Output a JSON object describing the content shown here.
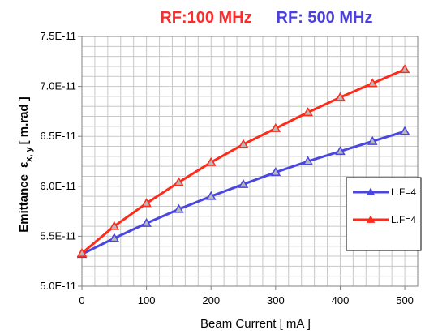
{
  "chart_data": {
    "type": "line",
    "title_left": "RF:100 MHz",
    "title_right": "RF: 500 MHz",
    "title_left_color": "#ff2a2a",
    "title_right_color": "#4a3fe0",
    "xlabel": "Beam Current [ mA ]",
    "ylabel_main": "Emittance",
    "ylabel_symbol": "ε",
    "ylabel_subscript": "x, y",
    "ylabel_unit": "[ m.rad ]",
    "xlim": [
      0,
      520
    ],
    "ylim": [
      5e-11,
      7.5e-11
    ],
    "xticks": [
      0,
      100,
      200,
      300,
      400,
      500
    ],
    "xtick_labels": [
      "0",
      "100",
      "200",
      "300",
      "400",
      "500"
    ],
    "yticks": [
      5e-11,
      5.5e-11,
      6e-11,
      6.5e-11,
      7e-11,
      7.5e-11
    ],
    "ytick_labels": [
      "5.0E-11",
      "5.5E-11",
      "6.0E-11",
      "6.5E-11",
      "7.0E-11",
      "7.5E-11"
    ],
    "grid": true,
    "legend_position": "right",
    "x": [
      0,
      50,
      100,
      150,
      200,
      250,
      300,
      350,
      400,
      450,
      500
    ],
    "series": [
      {
        "name": "L.F=4",
        "color": "#4a46e0",
        "values": [
          5.32e-11,
          5.48e-11,
          5.63e-11,
          5.77e-11,
          5.9e-11,
          6.02e-11,
          6.14e-11,
          6.25e-11,
          6.35e-11,
          6.45e-11,
          6.55e-11
        ]
      },
      {
        "name": "L.F=4",
        "color": "#ff2a1a",
        "values": [
          5.33e-11,
          5.6e-11,
          5.83e-11,
          6.04e-11,
          6.24e-11,
          6.42e-11,
          6.58e-11,
          6.74e-11,
          6.89e-11,
          7.03e-11,
          7.17e-11
        ]
      }
    ]
  }
}
